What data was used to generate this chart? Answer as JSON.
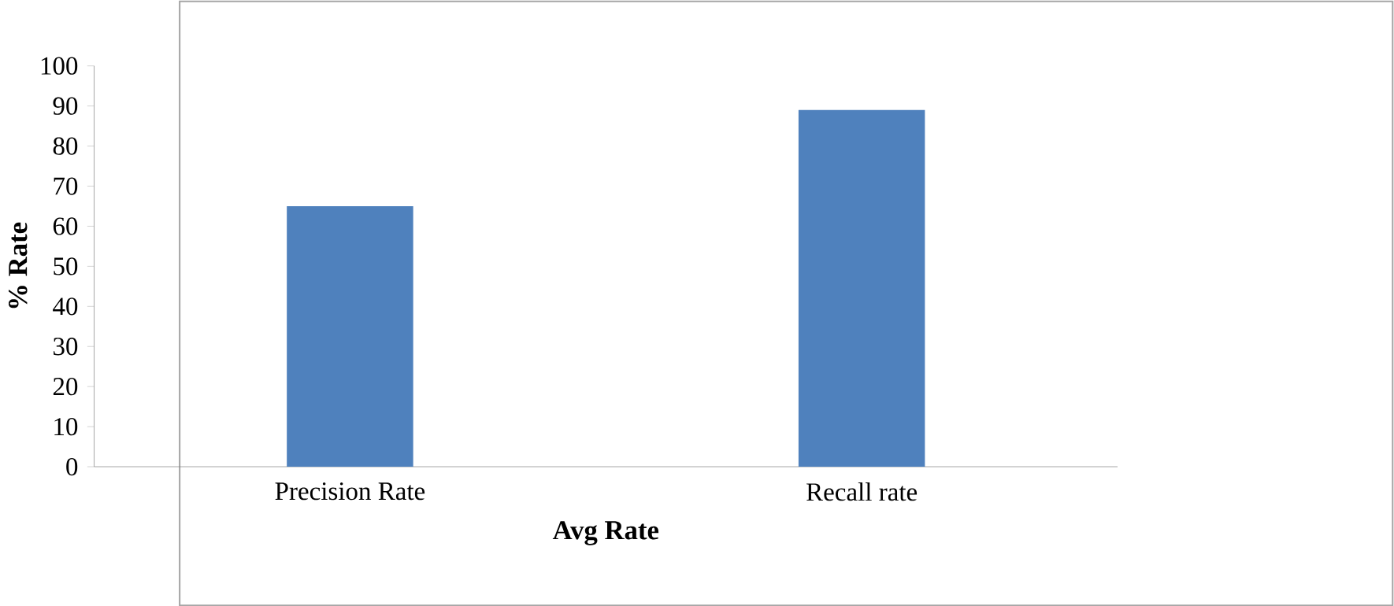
{
  "chart_data": {
    "type": "bar",
    "xlabel": "Avg Rate",
    "ylabel": "% Rate",
    "categories": [
      "Precision Rate",
      "Recall rate"
    ],
    "values": [
      65,
      89
    ],
    "color": "#4f81bd",
    "ylim": [
      0,
      100
    ],
    "yticks": [
      0,
      10,
      20,
      30,
      40,
      50,
      60,
      70,
      80,
      90,
      100
    ]
  }
}
